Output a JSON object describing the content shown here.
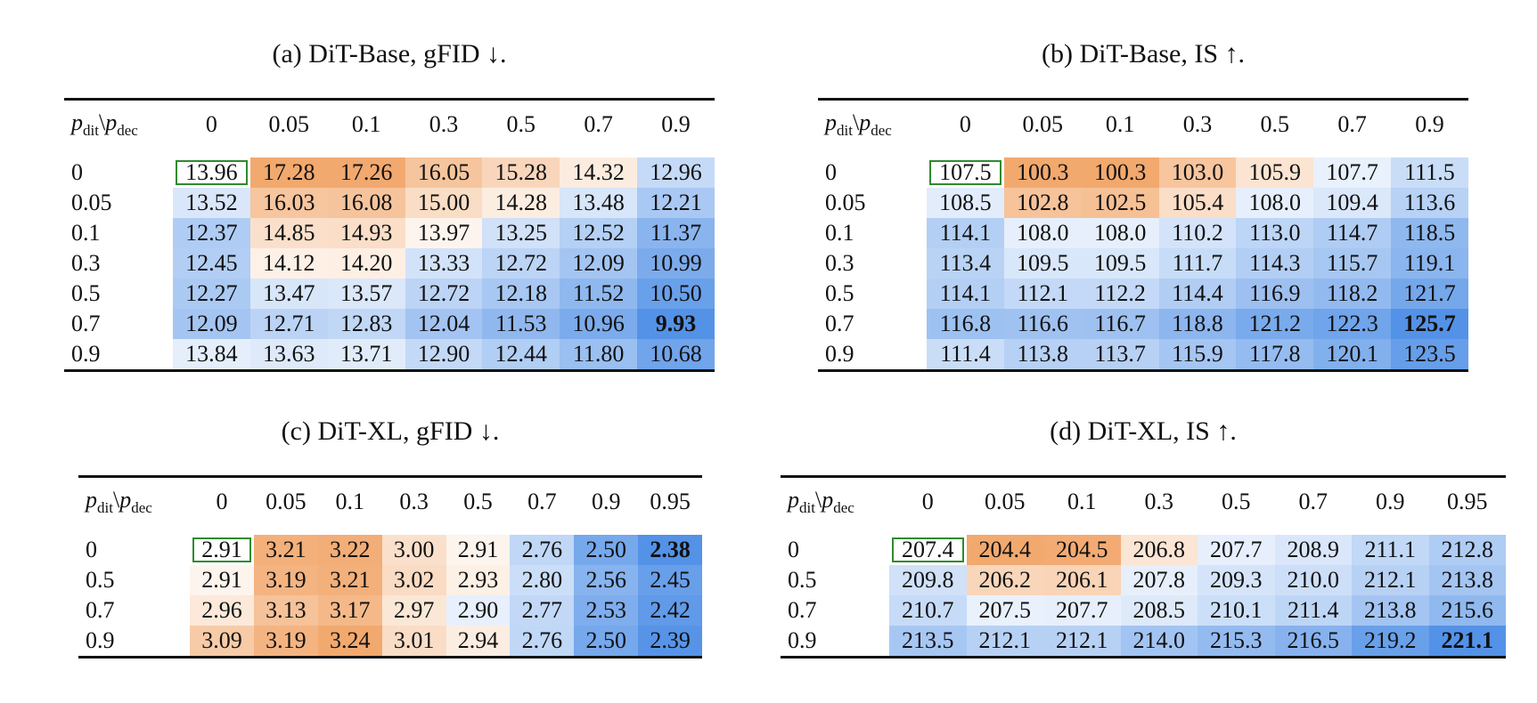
{
  "colors": {
    "orange": "#f2a66a",
    "blue": "#4f8fe6",
    "box": "#2e8b2e"
  },
  "row_header": {
    "var_a": "p",
    "sub_a": "dit",
    "sep": "\\",
    "var_b": "p",
    "sub_b": "dec"
  },
  "panels": [
    {
      "id": "a",
      "caption": "(a) DiT-Base, gFID ↓.",
      "cols": [
        "0",
        "0.05",
        "0.1",
        "0.3",
        "0.5",
        "0.7",
        "0.9"
      ],
      "rows": [
        "0",
        "0.05",
        "0.1",
        "0.3",
        "0.5",
        "0.7",
        "0.9"
      ],
      "values": [
        [
          "13.96",
          "17.28",
          "17.26",
          "16.05",
          "15.28",
          "14.32",
          "12.96"
        ],
        [
          "13.52",
          "16.03",
          "16.08",
          "15.00",
          "14.28",
          "13.48",
          "12.21"
        ],
        [
          "12.37",
          "14.85",
          "14.93",
          "13.97",
          "13.25",
          "12.52",
          "11.37"
        ],
        [
          "12.45",
          "14.12",
          "14.20",
          "13.33",
          "12.72",
          "12.09",
          "10.99"
        ],
        [
          "12.27",
          "13.47",
          "13.57",
          "12.72",
          "12.18",
          "11.52",
          "10.50"
        ],
        [
          "12.09",
          "12.71",
          "12.83",
          "12.04",
          "11.53",
          "10.96",
          "9.93"
        ],
        [
          "13.84",
          "13.63",
          "13.71",
          "12.90",
          "12.44",
          "11.80",
          "10.68"
        ]
      ],
      "best": [
        5,
        6
      ]
    },
    {
      "id": "b",
      "caption": "(b) DiT-Base, IS ↑.",
      "cols": [
        "0",
        "0.05",
        "0.1",
        "0.3",
        "0.5",
        "0.7",
        "0.9"
      ],
      "rows": [
        "0",
        "0.05",
        "0.1",
        "0.3",
        "0.5",
        "0.7",
        "0.9"
      ],
      "values": [
        [
          "107.5",
          "100.3",
          "100.3",
          "103.0",
          "105.9",
          "107.7",
          "111.5"
        ],
        [
          "108.5",
          "102.8",
          "102.5",
          "105.4",
          "108.0",
          "109.4",
          "113.6"
        ],
        [
          "114.1",
          "108.0",
          "108.0",
          "110.2",
          "113.0",
          "114.7",
          "118.5"
        ],
        [
          "113.4",
          "109.5",
          "109.5",
          "111.7",
          "114.3",
          "115.7",
          "119.1"
        ],
        [
          "114.1",
          "112.1",
          "112.2",
          "114.4",
          "116.9",
          "118.2",
          "121.7"
        ],
        [
          "116.8",
          "116.6",
          "116.7",
          "118.8",
          "121.2",
          "122.3",
          "125.7"
        ],
        [
          "111.4",
          "113.8",
          "113.7",
          "115.9",
          "117.8",
          "120.1",
          "123.5"
        ]
      ],
      "best": [
        5,
        6
      ]
    },
    {
      "id": "c",
      "caption": "(c) DiT-XL, gFID ↓.",
      "cols": [
        "0",
        "0.05",
        "0.1",
        "0.3",
        "0.5",
        "0.7",
        "0.9",
        "0.95"
      ],
      "rows": [
        "0",
        "0.5",
        "0.7",
        "0.9"
      ],
      "values": [
        [
          "2.91",
          "3.21",
          "3.22",
          "3.00",
          "2.91",
          "2.76",
          "2.50",
          "2.38"
        ],
        [
          "2.91",
          "3.19",
          "3.21",
          "3.02",
          "2.93",
          "2.80",
          "2.56",
          "2.45"
        ],
        [
          "2.96",
          "3.13",
          "3.17",
          "2.97",
          "2.90",
          "2.77",
          "2.53",
          "2.42"
        ],
        [
          "3.09",
          "3.19",
          "3.24",
          "3.01",
          "2.94",
          "2.76",
          "2.50",
          "2.39"
        ]
      ],
      "best": [
        0,
        7
      ]
    },
    {
      "id": "d",
      "caption": "(d) DiT-XL, IS ↑.",
      "cols": [
        "0",
        "0.05",
        "0.1",
        "0.3",
        "0.5",
        "0.7",
        "0.9",
        "0.95"
      ],
      "rows": [
        "0",
        "0.5",
        "0.7",
        "0.9"
      ],
      "values": [
        [
          "207.4",
          "204.4",
          "204.5",
          "206.8",
          "207.7",
          "208.9",
          "211.1",
          "212.8"
        ],
        [
          "209.8",
          "206.2",
          "206.1",
          "207.8",
          "209.3",
          "210.0",
          "212.1",
          "213.8"
        ],
        [
          "210.7",
          "207.5",
          "207.7",
          "208.5",
          "210.1",
          "211.4",
          "213.8",
          "215.6"
        ],
        [
          "213.5",
          "212.1",
          "212.1",
          "214.0",
          "215.3",
          "216.5",
          "219.2",
          "221.1"
        ]
      ],
      "best": [
        3,
        7
      ]
    }
  ]
}
